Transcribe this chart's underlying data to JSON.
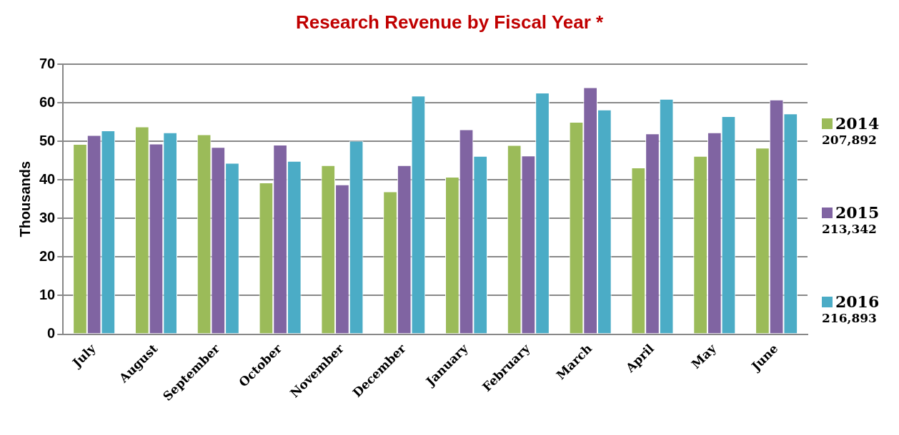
{
  "chart_data": {
    "type": "bar",
    "title": "Research Revenue by Fiscal Year *",
    "ylabel": "Thousands",
    "categories": [
      "July",
      "August",
      "September",
      "October",
      "November",
      "December",
      "January",
      "February",
      "March",
      "April",
      "May",
      "June"
    ],
    "series": [
      {
        "name": "2014",
        "color": "#9bbb59",
        "values": [
          49.3,
          53.8,
          51.8,
          39.3,
          43.8,
          37.0,
          40.8,
          49.0,
          55.0,
          43.2,
          46.2,
          48.3
        ]
      },
      {
        "name": "2015",
        "color": "#8064a2",
        "values": [
          51.6,
          49.4,
          48.5,
          49.1,
          38.8,
          43.8,
          53.1,
          46.3,
          64.0,
          52.0,
          52.3,
          60.8
        ]
      },
      {
        "name": "2016",
        "color": "#4bacc6",
        "values": [
          52.8,
          52.3,
          44.4,
          44.9,
          50.1,
          61.8,
          46.2,
          62.6,
          58.2,
          61.0,
          56.5,
          57.2
        ]
      }
    ],
    "annotations": [
      "207,892",
      "213,342",
      "216,893"
    ],
    "ylim": [
      0,
      70
    ],
    "yticks": [
      0,
      10,
      20,
      30,
      40,
      50,
      60,
      70
    ],
    "grid": "y",
    "legend": "right"
  }
}
